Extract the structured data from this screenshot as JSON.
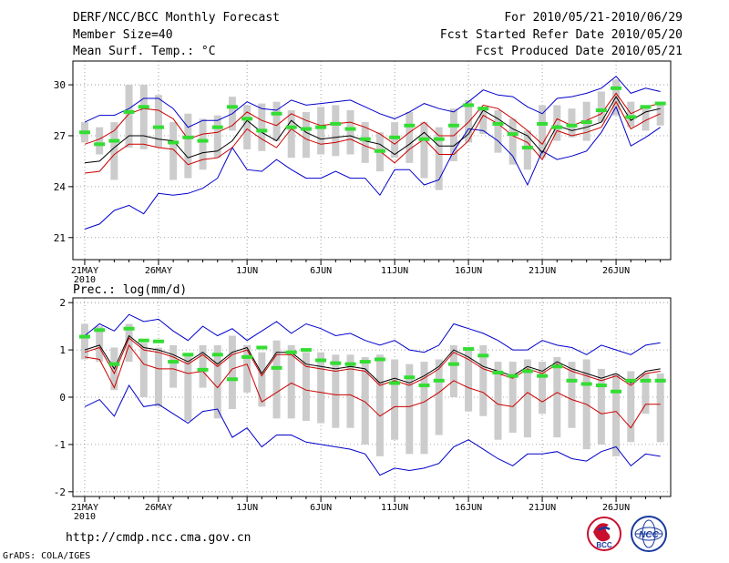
{
  "header": {
    "title": "DERF/NCC/BCC Monthly Forecast",
    "member_size": "Member Size=40",
    "variable_top": "Mean Surf. Temp.: °C",
    "forecast_range": "For 2010/05/21-2010/06/29",
    "started_refer": "Fcst Started Refer Date 2010/05/20",
    "produced": "Fcst Produced Date 2010/05/21"
  },
  "footer": {
    "url": "http://cmdp.ncc.cma.gov.cn",
    "grads": "GrADS: COLA/IGES",
    "logo_bcc": "BCC",
    "logo_ncc": "NCC"
  },
  "colors": {
    "spread": "#cccccc",
    "mean": "#33dd33",
    "envelope": "#0000cc",
    "inner": "#cc0000",
    "median": "#000000"
  },
  "chart_data": [
    {
      "type": "line",
      "title": "Mean Surf. Temp.: °C",
      "xlabel": "",
      "ylabel": "°C",
      "x_ticks": [
        "21MAY",
        "26MAY",
        "1JUN",
        "6JUN",
        "11JUN",
        "16JUN",
        "21JUN",
        "26JUN"
      ],
      "x_tick_days": [
        0,
        5,
        11,
        16,
        21,
        26,
        31,
        36
      ],
      "x_year": "2010",
      "y_ticks": [
        21,
        24,
        27,
        30
      ],
      "ylim": [
        19.7,
        31.4
      ],
      "days": 40,
      "series": [
        {
          "name": "max",
          "values": [
            27.8,
            28.2,
            28.2,
            28.6,
            29.2,
            29.2,
            28.6,
            27.5,
            27.9,
            27.9,
            28.3,
            29.0,
            28.6,
            28.5,
            29.1,
            28.8,
            28.9,
            29.0,
            29.1,
            28.7,
            28.3,
            28.0,
            28.4,
            28.9,
            28.6,
            28.4,
            29.0,
            29.7,
            29.4,
            29.3,
            28.7,
            28.3,
            29.2,
            29.3,
            29.5,
            29.8,
            30.5,
            29.5,
            29.8,
            29.6
          ]
        },
        {
          "name": "upper",
          "values": [
            26.5,
            26.8,
            27.3,
            28.3,
            28.6,
            28.5,
            28.0,
            26.8,
            27.1,
            27.2,
            27.6,
            28.4,
            27.9,
            27.6,
            28.3,
            27.9,
            27.6,
            27.7,
            27.8,
            27.5,
            27.1,
            26.5,
            27.2,
            27.8,
            27.0,
            27.0,
            27.8,
            28.8,
            28.6,
            28.0,
            27.3,
            26.5,
            28.0,
            27.6,
            27.9,
            28.3,
            29.5,
            28.3,
            28.7,
            28.9
          ]
        },
        {
          "name": "median",
          "values": [
            25.4,
            25.5,
            26.3,
            27.0,
            27.0,
            26.8,
            26.7,
            25.7,
            26.0,
            26.1,
            26.7,
            27.9,
            27.2,
            26.7,
            27.9,
            27.2,
            26.8,
            26.9,
            27.0,
            26.7,
            26.5,
            25.9,
            26.5,
            27.2,
            26.4,
            26.4,
            27.1,
            28.5,
            28.0,
            27.4,
            27.0,
            26.0,
            27.6,
            27.3,
            27.5,
            27.8,
            29.3,
            27.9,
            28.4,
            28.6
          ]
        },
        {
          "name": "lower",
          "values": [
            24.8,
            24.9,
            25.9,
            26.5,
            26.5,
            26.3,
            26.2,
            25.3,
            25.6,
            25.7,
            26.3,
            27.4,
            26.8,
            26.3,
            27.4,
            26.8,
            26.5,
            26.6,
            26.8,
            26.4,
            26.1,
            25.4,
            26.2,
            26.8,
            25.9,
            25.9,
            26.7,
            28.2,
            27.7,
            27.0,
            26.6,
            25.6,
            27.3,
            27.0,
            27.2,
            27.5,
            29.0,
            27.4,
            27.9,
            28.3
          ]
        },
        {
          "name": "min",
          "values": [
            21.5,
            21.8,
            22.6,
            22.9,
            22.4,
            23.6,
            23.5,
            23.6,
            23.9,
            24.5,
            26.3,
            25.0,
            24.9,
            25.6,
            25.0,
            24.5,
            24.5,
            24.9,
            24.5,
            24.5,
            23.5,
            25.0,
            25.0,
            24.1,
            24.4,
            26.1,
            27.4,
            27.3,
            26.7,
            25.8,
            24.1,
            26.1,
            25.6,
            25.8,
            26.1,
            27.2,
            28.7,
            26.4,
            26.9,
            27.5
          ]
        },
        {
          "name": "ens-mean",
          "values": [
            27.2,
            26.5,
            26.7,
            28.4,
            28.7,
            27.5,
            26.6,
            26.9,
            26.7,
            27.5,
            28.7,
            28.0,
            27.3,
            28.3,
            27.5,
            27.4,
            27.5,
            27.7,
            27.4,
            26.8,
            26.1,
            26.9,
            27.6,
            26.8,
            26.8,
            27.6,
            28.8,
            28.6,
            27.7,
            27.1,
            26.3,
            27.7,
            27.5,
            27.6,
            27.8,
            28.5,
            29.8,
            28.1,
            28.7,
            28.9
          ]
        },
        {
          "name": "spread-top",
          "values": [
            27.8,
            27.5,
            27.8,
            30.0,
            30.0,
            29.4,
            27.8,
            28.3,
            28.0,
            28.2,
            29.3,
            28.8,
            28.9,
            29.0,
            28.5,
            28.4,
            28.7,
            28.8,
            28.5,
            27.8,
            27.2,
            27.8,
            28.4,
            27.8,
            27.5,
            28.6,
            29.1,
            28.7,
            28.5,
            28.0,
            27.3,
            28.8,
            28.8,
            28.6,
            29.0,
            29.6,
            30.3,
            29.0,
            28.7,
            28.9
          ]
        },
        {
          "name": "spread-bottom",
          "values": [
            26.6,
            25.9,
            24.4,
            26.3,
            26.2,
            26.3,
            24.4,
            24.5,
            25.0,
            25.7,
            27.3,
            26.2,
            26.1,
            26.7,
            25.7,
            25.7,
            25.9,
            25.8,
            25.9,
            25.4,
            24.9,
            25.7,
            25.4,
            24.5,
            23.8,
            25.5,
            26.6,
            27.1,
            26.0,
            25.3,
            25.0,
            25.7,
            26.7,
            26.9,
            26.7,
            27.8,
            28.2,
            27.5,
            27.3,
            27.6
          ]
        }
      ]
    },
    {
      "type": "line",
      "title": "Prec.: log(mm/d)",
      "xlabel": "",
      "ylabel": "log(mm/d)",
      "x_ticks": [
        "21MAY",
        "26MAY",
        "1JUN",
        "6JUN",
        "11JUN",
        "16JUN",
        "21JUN",
        "26JUN"
      ],
      "x_tick_days": [
        0,
        5,
        11,
        16,
        21,
        26,
        31,
        36
      ],
      "x_year": "2010",
      "y_ticks": [
        -2,
        -1,
        0,
        1,
        2
      ],
      "ylim": [
        -2.1,
        2.1
      ],
      "days": 40,
      "series": [
        {
          "name": "max",
          "values": [
            1.3,
            1.55,
            1.4,
            1.75,
            1.6,
            1.65,
            1.4,
            1.2,
            1.5,
            1.3,
            1.45,
            1.2,
            1.4,
            1.6,
            1.35,
            1.55,
            1.45,
            1.3,
            1.35,
            1.2,
            1.1,
            1.2,
            1.0,
            0.95,
            1.1,
            1.55,
            1.45,
            1.35,
            1.2,
            1.0,
            1.0,
            1.2,
            1.1,
            1.05,
            0.9,
            1.1,
            1.0,
            0.9,
            1.1,
            1.15
          ]
        },
        {
          "name": "median",
          "values": [
            1.0,
            1.1,
            0.6,
            1.3,
            1.05,
            1.0,
            0.9,
            0.75,
            0.95,
            0.7,
            0.95,
            1.05,
            0.5,
            0.95,
            0.95,
            0.7,
            0.65,
            0.6,
            0.65,
            0.6,
            0.3,
            0.4,
            0.3,
            0.45,
            0.65,
            1.0,
            0.85,
            0.65,
            0.55,
            0.45,
            0.65,
            0.55,
            0.75,
            0.6,
            0.5,
            0.4,
            0.5,
            0.3,
            0.55,
            0.6
          ]
        },
        {
          "name": "upper",
          "values": [
            0.95,
            1.05,
            0.5,
            1.25,
            1.0,
            0.95,
            0.85,
            0.7,
            0.9,
            0.65,
            0.9,
            1.0,
            0.45,
            0.9,
            0.9,
            0.65,
            0.6,
            0.55,
            0.6,
            0.55,
            0.25,
            0.35,
            0.25,
            0.4,
            0.6,
            0.95,
            0.8,
            0.6,
            0.5,
            0.4,
            0.6,
            0.5,
            0.7,
            0.55,
            0.45,
            0.35,
            0.45,
            0.25,
            0.5,
            0.55
          ]
        },
        {
          "name": "lower",
          "values": [
            0.85,
            0.8,
            0.2,
            1.1,
            0.7,
            0.6,
            0.6,
            0.5,
            0.55,
            0.2,
            0.6,
            0.7,
            -0.1,
            0.1,
            0.3,
            0.15,
            0.1,
            0.05,
            0.05,
            -0.1,
            -0.4,
            -0.2,
            -0.2,
            -0.1,
            0.1,
            0.35,
            0.2,
            0.1,
            -0.15,
            -0.2,
            0.1,
            -0.1,
            0.1,
            -0.05,
            -0.15,
            -0.35,
            -0.3,
            -0.65,
            -0.15,
            -0.15
          ]
        },
        {
          "name": "min",
          "values": [
            -0.2,
            -0.05,
            -0.4,
            0.25,
            -0.2,
            -0.15,
            -0.35,
            -0.55,
            -0.3,
            -0.25,
            -0.85,
            -0.65,
            -1.05,
            -0.8,
            -0.8,
            -0.95,
            -1.0,
            -1.05,
            -1.1,
            -1.2,
            -1.65,
            -1.5,
            -1.55,
            -1.5,
            -1.4,
            -1.05,
            -0.9,
            -1.1,
            -1.3,
            -1.45,
            -1.2,
            -1.2,
            -1.15,
            -1.3,
            -1.35,
            -1.15,
            -1.05,
            -1.45,
            -1.2,
            -1.25
          ]
        },
        {
          "name": "ens-mean",
          "values": [
            1.28,
            1.42,
            0.7,
            1.45,
            1.2,
            1.18,
            0.75,
            0.9,
            0.58,
            0.9,
            0.38,
            0.85,
            1.05,
            0.62,
            0.95,
            1.0,
            0.78,
            0.72,
            0.7,
            0.75,
            0.8,
            0.3,
            0.42,
            0.25,
            0.35,
            0.7,
            1.02,
            0.88,
            0.52,
            0.45,
            0.55,
            0.45,
            0.65,
            0.35,
            0.28,
            0.25,
            0.12,
            0.35,
            0.35,
            0.35
          ]
        },
        {
          "name": "spread-top",
          "values": [
            1.55,
            1.5,
            1.05,
            1.55,
            1.15,
            1.05,
            1.1,
            0.9,
            1.1,
            1.1,
            1.3,
            1.1,
            0.95,
            1.2,
            1.1,
            0.95,
            0.95,
            0.9,
            0.9,
            0.85,
            0.9,
            0.8,
            0.7,
            0.75,
            0.8,
            1.1,
            1.0,
            1.1,
            0.75,
            0.75,
            0.8,
            0.75,
            0.85,
            0.75,
            0.8,
            0.6,
            0.5,
            0.55,
            0.5,
            0.5
          ]
        },
        {
          "name": "spread-bottom",
          "values": [
            0.8,
            0.75,
            0.15,
            0.75,
            0.0,
            -0.2,
            0.2,
            -0.5,
            0.2,
            -0.45,
            -0.25,
            0.1,
            -0.2,
            -0.45,
            -0.45,
            -0.5,
            -0.55,
            -0.65,
            -0.65,
            -1.0,
            -1.25,
            -0.9,
            -1.2,
            -1.2,
            -0.8,
            0.0,
            -0.3,
            -0.4,
            -0.9,
            -0.75,
            -0.85,
            -0.35,
            -0.85,
            -0.65,
            -1.1,
            -1.0,
            -1.25,
            -0.95,
            -0.35,
            -0.95
          ]
        }
      ]
    }
  ]
}
